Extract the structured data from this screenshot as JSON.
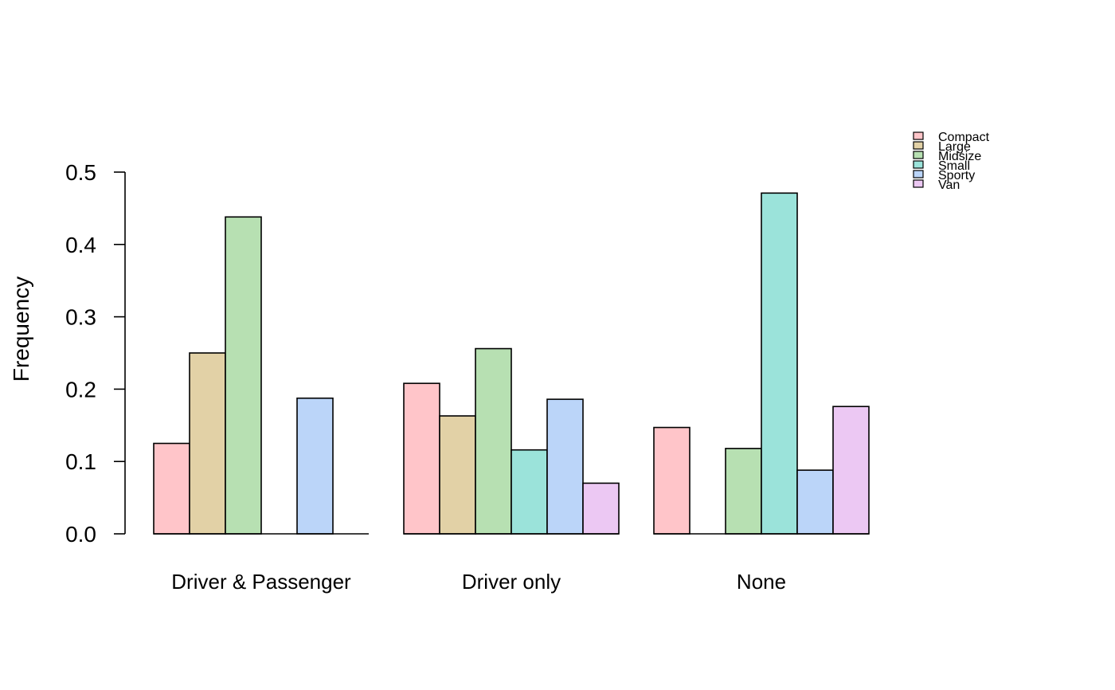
{
  "chart_data": {
    "type": "bar",
    "layout": "grouped",
    "title": "",
    "xlabel": "",
    "ylabel": "Frequency",
    "ylim": [
      0,
      0.5
    ],
    "y_ticks": [
      "0.0",
      "0.1",
      "0.2",
      "0.3",
      "0.4",
      "0.5"
    ],
    "grid": false,
    "legend_position": "top-right",
    "categories": [
      "Driver & Passenger",
      "Driver only",
      "None"
    ],
    "series": [
      {
        "name": "Compact",
        "color": "#FFC5C9",
        "values": [
          0.125,
          0.208,
          0.147
        ]
      },
      {
        "name": "Large",
        "color": "#E2D1A6",
        "values": [
          0.25,
          0.163,
          0.0
        ]
      },
      {
        "name": "Midsize",
        "color": "#B7E0B2",
        "values": [
          0.438,
          0.256,
          0.118
        ]
      },
      {
        "name": "Small",
        "color": "#9BE3DA",
        "values": [
          0.0,
          0.116,
          0.471
        ]
      },
      {
        "name": "Sporty",
        "color": "#BBD5F9",
        "values": [
          0.1875,
          0.186,
          0.088
        ]
      },
      {
        "name": "Van",
        "color": "#ECC8F3",
        "values": [
          0.0,
          0.07,
          0.176
        ]
      }
    ]
  }
}
